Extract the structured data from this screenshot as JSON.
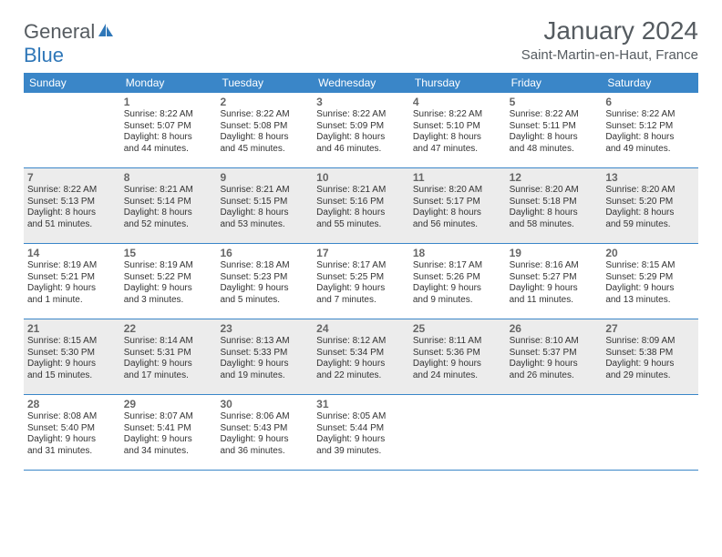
{
  "colors": {
    "header_bg": "#3a86c8",
    "header_text": "#ffffff",
    "shade_bg": "#ececec",
    "text": "#333333",
    "title_text": "#555b60",
    "logo_accent": "#2f77b8",
    "row_border": "#3a86c8"
  },
  "logo": {
    "part1": "General",
    "part2": "Blue"
  },
  "title": "January 2024",
  "location": "Saint-Martin-en-Haut, France",
  "days_of_week": [
    "Sunday",
    "Monday",
    "Tuesday",
    "Wednesday",
    "Thursday",
    "Friday",
    "Saturday"
  ],
  "weeks": [
    {
      "shaded": false,
      "cells": [
        {
          "num": "",
          "lines": []
        },
        {
          "num": "1",
          "lines": [
            "Sunrise: 8:22 AM",
            "Sunset: 5:07 PM",
            "Daylight: 8 hours",
            "and 44 minutes."
          ]
        },
        {
          "num": "2",
          "lines": [
            "Sunrise: 8:22 AM",
            "Sunset: 5:08 PM",
            "Daylight: 8 hours",
            "and 45 minutes."
          ]
        },
        {
          "num": "3",
          "lines": [
            "Sunrise: 8:22 AM",
            "Sunset: 5:09 PM",
            "Daylight: 8 hours",
            "and 46 minutes."
          ]
        },
        {
          "num": "4",
          "lines": [
            "Sunrise: 8:22 AM",
            "Sunset: 5:10 PM",
            "Daylight: 8 hours",
            "and 47 minutes."
          ]
        },
        {
          "num": "5",
          "lines": [
            "Sunrise: 8:22 AM",
            "Sunset: 5:11 PM",
            "Daylight: 8 hours",
            "and 48 minutes."
          ]
        },
        {
          "num": "6",
          "lines": [
            "Sunrise: 8:22 AM",
            "Sunset: 5:12 PM",
            "Daylight: 8 hours",
            "and 49 minutes."
          ]
        }
      ]
    },
    {
      "shaded": true,
      "cells": [
        {
          "num": "7",
          "lines": [
            "Sunrise: 8:22 AM",
            "Sunset: 5:13 PM",
            "Daylight: 8 hours",
            "and 51 minutes."
          ]
        },
        {
          "num": "8",
          "lines": [
            "Sunrise: 8:21 AM",
            "Sunset: 5:14 PM",
            "Daylight: 8 hours",
            "and 52 minutes."
          ]
        },
        {
          "num": "9",
          "lines": [
            "Sunrise: 8:21 AM",
            "Sunset: 5:15 PM",
            "Daylight: 8 hours",
            "and 53 minutes."
          ]
        },
        {
          "num": "10",
          "lines": [
            "Sunrise: 8:21 AM",
            "Sunset: 5:16 PM",
            "Daylight: 8 hours",
            "and 55 minutes."
          ]
        },
        {
          "num": "11",
          "lines": [
            "Sunrise: 8:20 AM",
            "Sunset: 5:17 PM",
            "Daylight: 8 hours",
            "and 56 minutes."
          ]
        },
        {
          "num": "12",
          "lines": [
            "Sunrise: 8:20 AM",
            "Sunset: 5:18 PM",
            "Daylight: 8 hours",
            "and 58 minutes."
          ]
        },
        {
          "num": "13",
          "lines": [
            "Sunrise: 8:20 AM",
            "Sunset: 5:20 PM",
            "Daylight: 8 hours",
            "and 59 minutes."
          ]
        }
      ]
    },
    {
      "shaded": false,
      "cells": [
        {
          "num": "14",
          "lines": [
            "Sunrise: 8:19 AM",
            "Sunset: 5:21 PM",
            "Daylight: 9 hours",
            "and 1 minute."
          ]
        },
        {
          "num": "15",
          "lines": [
            "Sunrise: 8:19 AM",
            "Sunset: 5:22 PM",
            "Daylight: 9 hours",
            "and 3 minutes."
          ]
        },
        {
          "num": "16",
          "lines": [
            "Sunrise: 8:18 AM",
            "Sunset: 5:23 PM",
            "Daylight: 9 hours",
            "and 5 minutes."
          ]
        },
        {
          "num": "17",
          "lines": [
            "Sunrise: 8:17 AM",
            "Sunset: 5:25 PM",
            "Daylight: 9 hours",
            "and 7 minutes."
          ]
        },
        {
          "num": "18",
          "lines": [
            "Sunrise: 8:17 AM",
            "Sunset: 5:26 PM",
            "Daylight: 9 hours",
            "and 9 minutes."
          ]
        },
        {
          "num": "19",
          "lines": [
            "Sunrise: 8:16 AM",
            "Sunset: 5:27 PM",
            "Daylight: 9 hours",
            "and 11 minutes."
          ]
        },
        {
          "num": "20",
          "lines": [
            "Sunrise: 8:15 AM",
            "Sunset: 5:29 PM",
            "Daylight: 9 hours",
            "and 13 minutes."
          ]
        }
      ]
    },
    {
      "shaded": true,
      "cells": [
        {
          "num": "21",
          "lines": [
            "Sunrise: 8:15 AM",
            "Sunset: 5:30 PM",
            "Daylight: 9 hours",
            "and 15 minutes."
          ]
        },
        {
          "num": "22",
          "lines": [
            "Sunrise: 8:14 AM",
            "Sunset: 5:31 PM",
            "Daylight: 9 hours",
            "and 17 minutes."
          ]
        },
        {
          "num": "23",
          "lines": [
            "Sunrise: 8:13 AM",
            "Sunset: 5:33 PM",
            "Daylight: 9 hours",
            "and 19 minutes."
          ]
        },
        {
          "num": "24",
          "lines": [
            "Sunrise: 8:12 AM",
            "Sunset: 5:34 PM",
            "Daylight: 9 hours",
            "and 22 minutes."
          ]
        },
        {
          "num": "25",
          "lines": [
            "Sunrise: 8:11 AM",
            "Sunset: 5:36 PM",
            "Daylight: 9 hours",
            "and 24 minutes."
          ]
        },
        {
          "num": "26",
          "lines": [
            "Sunrise: 8:10 AM",
            "Sunset: 5:37 PM",
            "Daylight: 9 hours",
            "and 26 minutes."
          ]
        },
        {
          "num": "27",
          "lines": [
            "Sunrise: 8:09 AM",
            "Sunset: 5:38 PM",
            "Daylight: 9 hours",
            "and 29 minutes."
          ]
        }
      ]
    },
    {
      "shaded": false,
      "cells": [
        {
          "num": "28",
          "lines": [
            "Sunrise: 8:08 AM",
            "Sunset: 5:40 PM",
            "Daylight: 9 hours",
            "and 31 minutes."
          ]
        },
        {
          "num": "29",
          "lines": [
            "Sunrise: 8:07 AM",
            "Sunset: 5:41 PM",
            "Daylight: 9 hours",
            "and 34 minutes."
          ]
        },
        {
          "num": "30",
          "lines": [
            "Sunrise: 8:06 AM",
            "Sunset: 5:43 PM",
            "Daylight: 9 hours",
            "and 36 minutes."
          ]
        },
        {
          "num": "31",
          "lines": [
            "Sunrise: 8:05 AM",
            "Sunset: 5:44 PM",
            "Daylight: 9 hours",
            "and 39 minutes."
          ]
        },
        {
          "num": "",
          "lines": []
        },
        {
          "num": "",
          "lines": []
        },
        {
          "num": "",
          "lines": []
        }
      ]
    }
  ]
}
